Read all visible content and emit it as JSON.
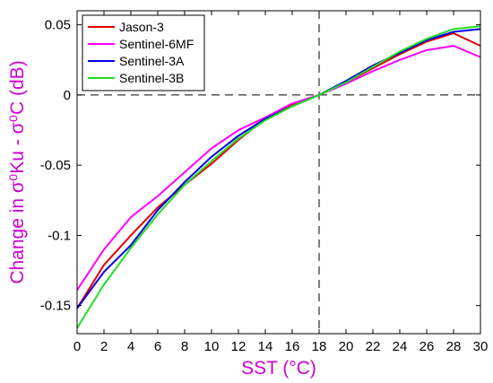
{
  "chart_data": {
    "type": "line",
    "x": [
      0,
      2,
      4,
      6,
      8,
      10,
      12,
      14,
      16,
      18,
      20,
      22,
      24,
      26,
      28,
      30
    ],
    "series": [
      {
        "name": "Jason-3",
        "color": "#e60000",
        "values": [
          -0.152,
          -0.121,
          -0.1,
          -0.08,
          -0.064,
          -0.049,
          -0.032,
          -0.017,
          -0.007,
          0.0,
          0.009,
          0.019,
          0.029,
          0.038,
          0.044,
          0.035
        ]
      },
      {
        "name": "Sentinel-6MF",
        "color": "#ff00ff",
        "values": [
          -0.139,
          -0.11,
          -0.087,
          -0.072,
          -0.055,
          -0.038,
          -0.025,
          -0.016,
          -0.006,
          0.0,
          0.008,
          0.017,
          0.025,
          0.032,
          0.035,
          0.027
        ]
      },
      {
        "name": "Sentinel-3A",
        "color": "#0000e6",
        "values": [
          -0.152,
          -0.126,
          -0.107,
          -0.082,
          -0.062,
          -0.044,
          -0.029,
          -0.017,
          -0.008,
          0.0,
          0.01,
          0.021,
          0.03,
          0.039,
          0.045,
          0.047
        ]
      },
      {
        "name": "Sentinel-3B",
        "color": "#22dd22",
        "values": [
          -0.166,
          -0.135,
          -0.109,
          -0.085,
          -0.064,
          -0.047,
          -0.031,
          -0.018,
          -0.008,
          0.0,
          0.009,
          0.02,
          0.031,
          0.04,
          0.047,
          0.049
        ]
      }
    ],
    "xlabel": "SST (°C)",
    "ylabel": "Change in σ⁰Ku - σ⁰C (dB)",
    "xlim": [
      0,
      30
    ],
    "ylim": [
      -0.17,
      0.06
    ],
    "xticks": [
      0,
      2,
      4,
      6,
      8,
      10,
      12,
      14,
      16,
      18,
      20,
      22,
      24,
      26,
      28,
      30
    ],
    "xtick_labels": [
      "0",
      "2",
      "4",
      "6",
      "8",
      "10",
      "12",
      "14",
      "16",
      "18",
      "20",
      "22",
      "24",
      "26",
      "28",
      "30"
    ],
    "yticks": [
      -0.15,
      -0.1,
      -0.05,
      0,
      0.05
    ],
    "ytick_labels": [
      "-0.15",
      "-0.1",
      "-0.05",
      "0",
      "0.05"
    ],
    "reference_lines": {
      "x": 18,
      "y": 0
    },
    "grid": false,
    "legend_position": "top-left"
  }
}
